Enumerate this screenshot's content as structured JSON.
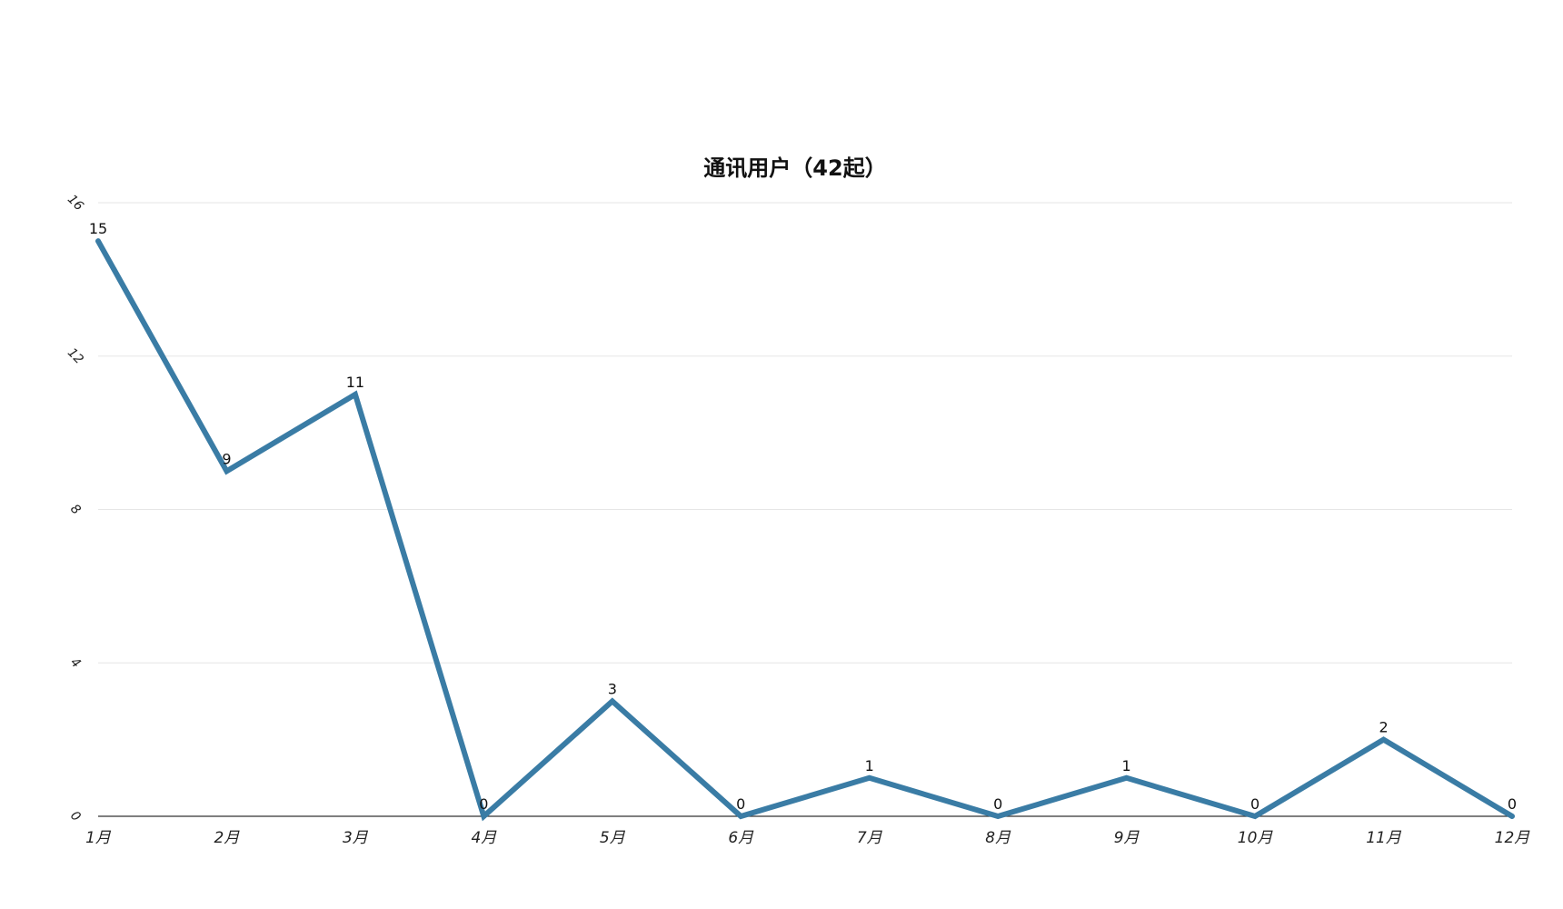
{
  "chart_data": {
    "type": "line",
    "title": "通讯用户（42起）",
    "categories": [
      "1月",
      "2月",
      "3月",
      "4月",
      "5月",
      "6月",
      "7月",
      "8月",
      "9月",
      "10月",
      "11月",
      "12月"
    ],
    "series": [
      {
        "values": [
          15,
          9,
          11,
          0,
          3,
          0,
          1,
          0,
          1,
          0,
          2,
          0
        ],
        "color": "#3a7ca5",
        "data_labels": true
      }
    ],
    "ylim": [
      0,
      16
    ],
    "yticks": [
      0,
      4,
      8,
      12,
      16
    ],
    "xlabel": "",
    "ylabel": "",
    "grid": true,
    "legend": "none"
  }
}
